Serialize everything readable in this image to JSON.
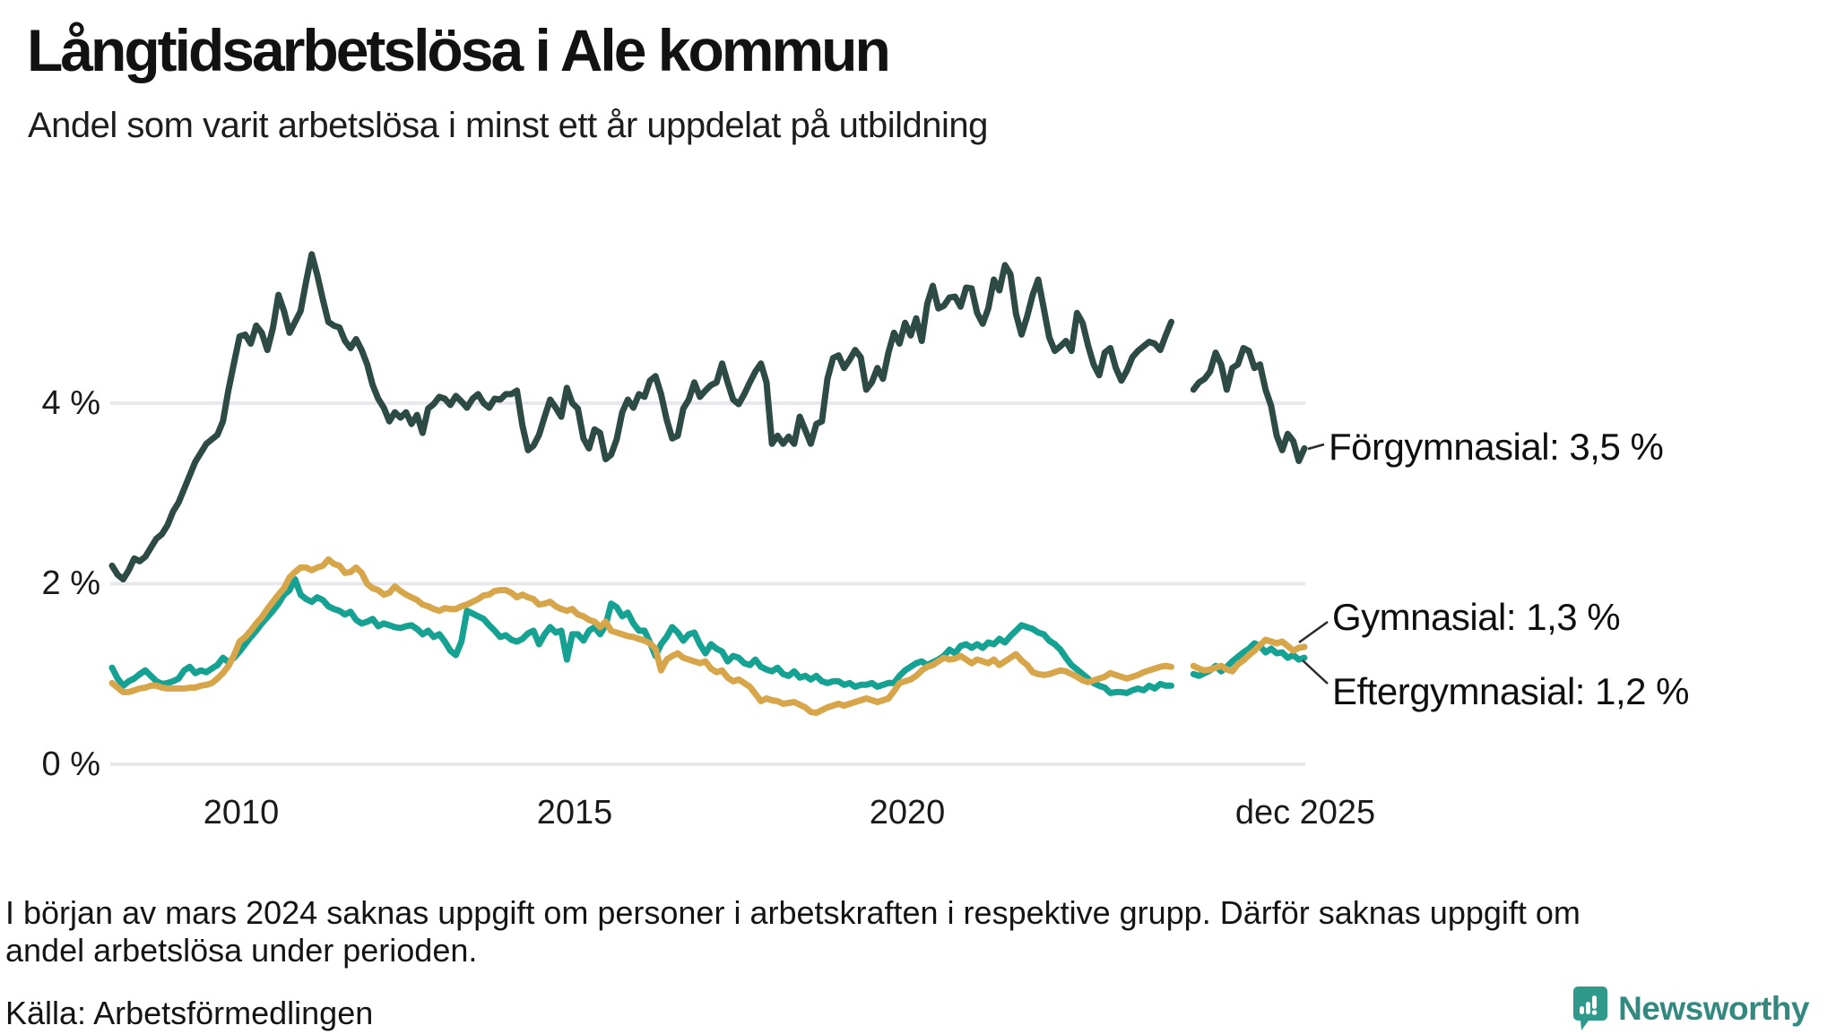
{
  "header": {
    "title": "Långtidsarbetslösa i Ale kommun",
    "subtitle": "Andel som varit arbetslösa i minst ett år uppdelat på utbildning"
  },
  "chart_data": {
    "type": "line",
    "title": "Långtidsarbetslösa i Ale kommun",
    "subtitle": "Andel som varit arbetslösa i minst ett år uppdelat på utbildning",
    "x_start": "2008-01",
    "x_end": "2025-12",
    "x_frequency": "monthly",
    "x_tick_labels": [
      "2010",
      "2015",
      "2020",
      "dec 2025"
    ],
    "y_tick_labels": [
      "0 %",
      "2 %",
      "4 %"
    ],
    "ylim": [
      0,
      6
    ],
    "grid": "horizontal",
    "legend_position": "end-of-line-labels",
    "missing_data_period": "2024-01 till 2024-03",
    "colors": {
      "forgymnasial": "#2d4a44",
      "gymnasial": "#d7a64a",
      "eftergymnasial": "#16a293",
      "gridline": "#e8e8ec"
    },
    "series": [
      {
        "name": "Förgymnasial",
        "end_label": "Förgymnasial: 3,5 %",
        "end_value": "3,5 %",
        "color": "#2d4a44",
        "values": [
          2.2,
          2.1,
          2.05,
          2.15,
          2.28,
          2.25,
          2.3,
          2.4,
          2.5,
          2.55,
          2.65,
          2.8,
          2.9,
          3.05,
          3.2,
          3.35,
          3.45,
          3.55,
          3.6,
          3.65,
          3.8,
          4.15,
          4.45,
          4.74,
          4.76,
          4.66,
          4.86,
          4.78,
          4.59,
          4.83,
          5.2,
          5.02,
          4.78,
          4.9,
          5.02,
          5.35,
          5.65,
          5.42,
          5.15,
          4.9,
          4.86,
          4.84,
          4.69,
          4.61,
          4.71,
          4.59,
          4.43,
          4.2,
          4.05,
          3.95,
          3.8,
          3.9,
          3.84,
          3.9,
          3.77,
          3.87,
          3.67,
          3.94,
          3.99,
          4.07,
          4.05,
          3.98,
          4.08,
          4.02,
          3.95,
          4.05,
          4.1,
          4.0,
          3.95,
          4.05,
          4.04,
          4.1,
          4.1,
          4.14,
          3.75,
          3.48,
          3.53,
          3.65,
          3.85,
          4.04,
          3.95,
          3.85,
          4.17,
          4.0,
          3.94,
          3.61,
          3.5,
          3.71,
          3.67,
          3.38,
          3.43,
          3.6,
          3.9,
          4.04,
          3.95,
          4.1,
          4.07,
          4.25,
          4.3,
          4.1,
          3.82,
          3.61,
          3.64,
          3.94,
          4.04,
          4.23,
          4.07,
          4.14,
          4.2,
          4.23,
          4.44,
          4.23,
          4.04,
          3.99,
          4.1,
          4.23,
          4.35,
          4.44,
          4.23,
          3.55,
          3.64,
          3.55,
          3.63,
          3.55,
          3.85,
          3.7,
          3.55,
          3.77,
          3.8,
          4.27,
          4.5,
          4.53,
          4.39,
          4.48,
          4.59,
          4.51,
          4.15,
          4.23,
          4.39,
          4.27,
          4.56,
          4.78,
          4.66,
          4.89,
          4.75,
          4.94,
          4.69,
          5.1,
          5.3,
          5.05,
          5.08,
          5.17,
          5.18,
          5.07,
          5.28,
          5.27,
          5.0,
          4.88,
          5.05,
          5.37,
          5.25,
          5.53,
          5.43,
          4.99,
          4.76,
          4.96,
          5.2,
          5.37,
          5.05,
          4.73,
          4.58,
          4.63,
          4.69,
          4.58,
          5.0,
          4.89,
          4.64,
          4.43,
          4.31,
          4.56,
          4.61,
          4.39,
          4.25,
          4.36,
          4.51,
          4.58,
          4.63,
          4.68,
          4.66,
          4.59,
          4.75,
          4.9,
          null,
          null,
          null,
          4.15,
          4.23,
          4.27,
          4.35,
          4.56,
          4.43,
          4.15,
          4.39,
          4.43,
          4.61,
          4.58,
          4.39,
          4.43,
          4.15,
          3.97,
          3.64,
          3.48,
          3.66,
          3.58,
          3.36,
          3.5
        ]
      },
      {
        "name": "Gymnasial",
        "end_label": "Gymnasial: 1,3 %",
        "end_value": "1,3 %",
        "color": "#d7a64a",
        "values": [
          0.9,
          0.85,
          0.8,
          0.8,
          0.82,
          0.84,
          0.85,
          0.87,
          0.87,
          0.85,
          0.84,
          0.84,
          0.84,
          0.84,
          0.85,
          0.85,
          0.87,
          0.88,
          0.9,
          0.95,
          1.01,
          1.09,
          1.21,
          1.36,
          1.41,
          1.48,
          1.56,
          1.63,
          1.72,
          1.8,
          1.88,
          1.95,
          2.07,
          2.13,
          2.18,
          2.18,
          2.15,
          2.18,
          2.2,
          2.27,
          2.22,
          2.2,
          2.12,
          2.13,
          2.18,
          2.12,
          2.0,
          1.95,
          1.93,
          1.88,
          1.9,
          1.97,
          1.92,
          1.88,
          1.85,
          1.82,
          1.77,
          1.75,
          1.72,
          1.7,
          1.73,
          1.72,
          1.72,
          1.75,
          1.77,
          1.8,
          1.83,
          1.87,
          1.88,
          1.92,
          1.93,
          1.93,
          1.9,
          1.85,
          1.88,
          1.85,
          1.83,
          1.77,
          1.78,
          1.8,
          1.75,
          1.72,
          1.7,
          1.72,
          1.66,
          1.64,
          1.6,
          1.58,
          1.52,
          1.58,
          1.48,
          1.46,
          1.44,
          1.42,
          1.41,
          1.39,
          1.37,
          1.34,
          1.28,
          1.04,
          1.16,
          1.2,
          1.23,
          1.18,
          1.16,
          1.14,
          1.12,
          1.14,
          1.06,
          1.02,
          1.04,
          0.96,
          0.92,
          0.94,
          0.9,
          0.86,
          0.78,
          0.7,
          0.73,
          0.71,
          0.7,
          0.67,
          0.68,
          0.69,
          0.66,
          0.63,
          0.58,
          0.57,
          0.6,
          0.63,
          0.65,
          0.67,
          0.65,
          0.67,
          0.69,
          0.71,
          0.73,
          0.71,
          0.69,
          0.71,
          0.73,
          0.81,
          0.9,
          0.92,
          0.94,
          0.98,
          1.04,
          1.08,
          1.1,
          1.14,
          1.18,
          1.16,
          1.17,
          1.2,
          1.16,
          1.12,
          1.16,
          1.14,
          1.12,
          1.16,
          1.1,
          1.14,
          1.18,
          1.22,
          1.15,
          1.1,
          1.02,
          1.0,
          0.99,
          1.0,
          1.02,
          1.04,
          1.03,
          1.0,
          0.97,
          0.93,
          0.91,
          0.93,
          0.95,
          0.97,
          1.01,
          0.99,
          0.97,
          0.95,
          0.97,
          0.99,
          1.02,
          1.04,
          1.06,
          1.08,
          1.09,
          1.08,
          null,
          null,
          null,
          1.09,
          1.06,
          1.04,
          1.05,
          1.07,
          1.09,
          1.05,
          1.03,
          1.11,
          1.15,
          1.21,
          1.26,
          1.32,
          1.38,
          1.36,
          1.34,
          1.36,
          1.31,
          1.26,
          1.29,
          1.3
        ]
      },
      {
        "name": "Eftergymnasial",
        "end_label": "Eftergymnasial: 1,2 %",
        "end_value": "1,2 %",
        "color": "#16a293",
        "values": [
          1.07,
          0.95,
          0.87,
          0.92,
          0.95,
          1.0,
          1.04,
          0.98,
          0.92,
          0.89,
          0.9,
          0.92,
          0.95,
          1.04,
          1.08,
          1.01,
          1.04,
          1.02,
          1.06,
          1.1,
          1.18,
          1.13,
          1.18,
          1.25,
          1.33,
          1.41,
          1.48,
          1.56,
          1.63,
          1.7,
          1.78,
          1.88,
          1.93,
          2.05,
          1.88,
          1.83,
          1.8,
          1.85,
          1.82,
          1.75,
          1.72,
          1.7,
          1.66,
          1.69,
          1.6,
          1.56,
          1.58,
          1.61,
          1.53,
          1.56,
          1.54,
          1.52,
          1.51,
          1.53,
          1.54,
          1.5,
          1.44,
          1.48,
          1.41,
          1.44,
          1.36,
          1.26,
          1.21,
          1.36,
          1.7,
          1.67,
          1.64,
          1.61,
          1.54,
          1.48,
          1.41,
          1.43,
          1.38,
          1.36,
          1.39,
          1.45,
          1.48,
          1.33,
          1.44,
          1.52,
          1.46,
          1.48,
          1.16,
          1.44,
          1.44,
          1.37,
          1.48,
          1.52,
          1.44,
          1.54,
          1.78,
          1.74,
          1.64,
          1.68,
          1.56,
          1.48,
          1.48,
          1.35,
          1.2,
          1.33,
          1.41,
          1.52,
          1.46,
          1.37,
          1.44,
          1.46,
          1.33,
          1.23,
          1.33,
          1.28,
          1.25,
          1.14,
          1.2,
          1.18,
          1.12,
          1.1,
          1.16,
          1.08,
          1.05,
          1.03,
          1.07,
          1.0,
          0.98,
          1.03,
          0.96,
          0.98,
          0.94,
          0.98,
          0.92,
          0.9,
          0.92,
          0.92,
          0.88,
          0.9,
          0.86,
          0.88,
          0.88,
          0.9,
          0.86,
          0.88,
          0.9,
          0.9,
          0.98,
          1.04,
          1.08,
          1.12,
          1.14,
          1.1,
          1.13,
          1.16,
          1.2,
          1.27,
          1.23,
          1.31,
          1.33,
          1.29,
          1.33,
          1.29,
          1.35,
          1.33,
          1.39,
          1.35,
          1.42,
          1.48,
          1.54,
          1.52,
          1.5,
          1.46,
          1.44,
          1.37,
          1.33,
          1.27,
          1.18,
          1.1,
          1.05,
          1.0,
          0.95,
          0.9,
          0.87,
          0.85,
          0.79,
          0.8,
          0.8,
          0.79,
          0.82,
          0.84,
          0.82,
          0.87,
          0.84,
          0.89,
          0.87,
          0.87,
          null,
          null,
          null,
          1.0,
          0.98,
          1.01,
          1.04,
          1.09,
          1.03,
          1.08,
          1.14,
          1.19,
          1.24,
          1.28,
          1.34,
          1.31,
          1.24,
          1.28,
          1.23,
          1.24,
          1.18,
          1.21,
          1.16,
          1.18
        ]
      }
    ]
  },
  "footer": {
    "note_line1": "I början av mars 2024 saknas uppgift om personer i arbetskraften i respektive grupp. Därför saknas uppgift om",
    "note_line2": "andel arbetslösa under perioden.",
    "source": "Källa: Arbetsförmedlingen",
    "brand": "Newsworthy"
  }
}
